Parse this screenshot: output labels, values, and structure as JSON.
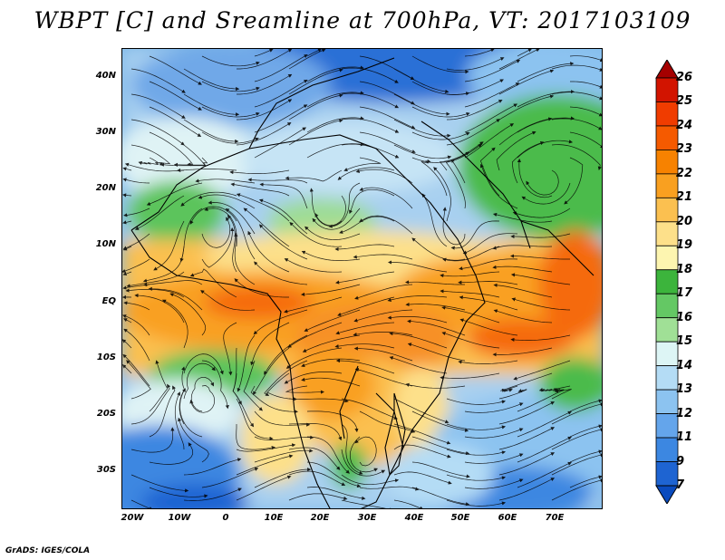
{
  "title": "WBPT [C] and Sreamline at 700hPa, VT: 2017103109",
  "credit": "GrADS: IGES/COLA",
  "map": {
    "lat_labels": [
      "40N",
      "30N",
      "20N",
      "10N",
      "EQ",
      "10S",
      "20S",
      "30S"
    ],
    "lon_labels": [
      "20W",
      "10W",
      "0",
      "10E",
      "20E",
      "30E",
      "40E",
      "50E",
      "60E",
      "70E"
    ],
    "lon_range": [
      -22,
      80
    ],
    "lat_range": [
      -36,
      45
    ]
  },
  "colorbar": {
    "levels": [
      "26",
      "25",
      "24",
      "23",
      "22",
      "21",
      "20",
      "19",
      "18",
      "17",
      "16",
      "15",
      "14",
      "13",
      "12",
      "11",
      "9",
      "7"
    ],
    "colors": [
      "#a50000",
      "#d21400",
      "#f03c00",
      "#f55a00",
      "#f78200",
      "#f9a020",
      "#fbc050",
      "#fde08a",
      "#fdf5b0",
      "#3cb43c",
      "#64c864",
      "#a0e096",
      "#ddf5f5",
      "#b4dcf5",
      "#8cc3f0",
      "#64a5eb",
      "#3c87e1",
      "#1e64d2",
      "#0a4bbe"
    ]
  }
}
